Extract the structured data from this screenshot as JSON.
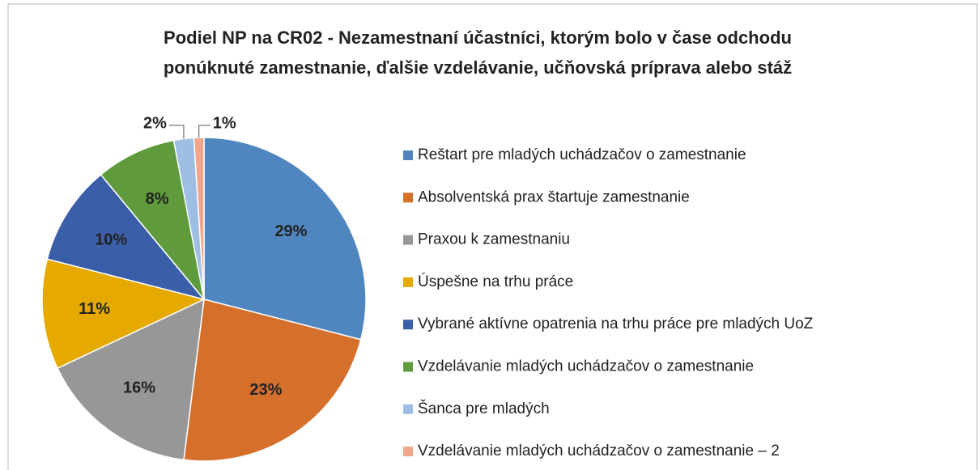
{
  "chart_data": {
    "type": "pie",
    "title": [
      "Podiel NP na CR02 - Nezamestnaní účastníci, ktorým bolo v čase odchodu",
      "ponúknuté zamestnanie, ďalšie vzdelávanie, učňovská príprava alebo stáž"
    ],
    "categories": [
      "Reštart pre mladých uchádzačov o zamestnanie",
      "Absolventská prax štartuje zamestnanie",
      "Praxou k zamestnaniu",
      "Úspešne na trhu práce",
      "Vybrané aktívne opatrenia na trhu práce pre mladých UoZ",
      "Vzdelávanie mladých uchádzačov o zamestnanie",
      "Šanca pre mladých",
      "Vzdelávanie mladých uchádzačov o zamestnanie – 2"
    ],
    "values": [
      29,
      23,
      16,
      11,
      10,
      8,
      2,
      1
    ],
    "value_labels": [
      "29%",
      "23%",
      "16%",
      "11%",
      "10%",
      "8%",
      "2%",
      "1%"
    ],
    "colors": [
      "#4f86bf",
      "#d4702c",
      "#979797",
      "#e5a900",
      "#3b5ea9",
      "#5f9a3d",
      "#9ebfe3",
      "#f1a68b"
    ],
    "legend": "right"
  }
}
